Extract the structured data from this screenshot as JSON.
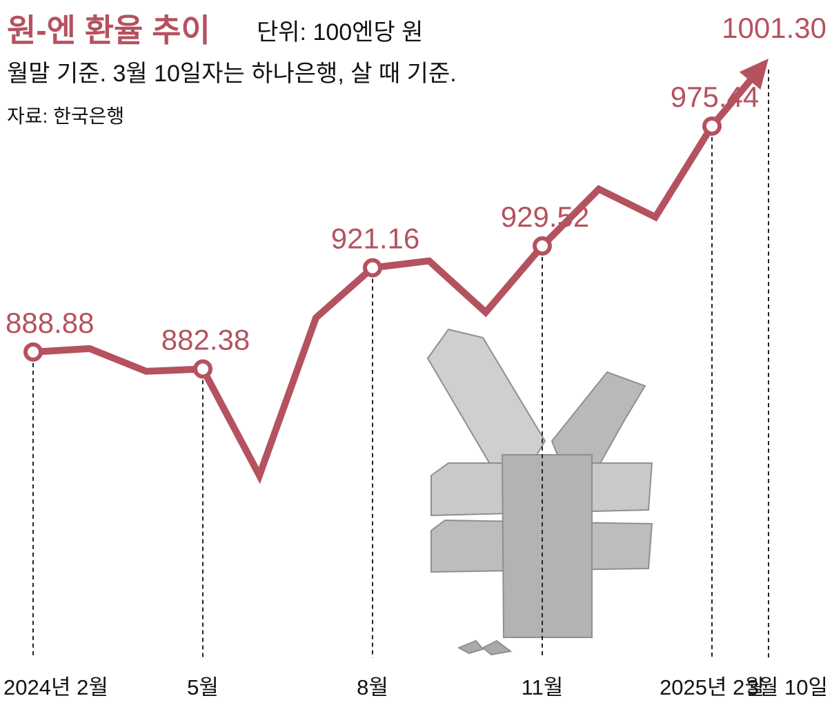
{
  "chart_data": {
    "type": "line",
    "title": "원-엔 환율 추이",
    "unit": "단위: 100엔당 원",
    "note": "월말 기준. 3월 10일자는 하나은행, 살 때 기준.",
    "source": "자료: 한국은행",
    "categories": [
      "2024년 2월",
      null,
      null,
      "5월",
      null,
      null,
      "8월",
      null,
      null,
      "11월",
      null,
      null,
      "2025년 2월",
      "3월 10일"
    ],
    "values": [
      888.88,
      890.2,
      881.5,
      882.38,
      841.6,
      902.0,
      921.16,
      923.8,
      904.1,
      929.52,
      951.3,
      940.6,
      975.44,
      1001.3
    ],
    "value_labels": [
      "888.88",
      null,
      null,
      "882.38",
      null,
      null,
      "921.16",
      null,
      null,
      "929.52",
      null,
      null,
      "975.44",
      "1001.30"
    ],
    "color": "#b5525f"
  }
}
